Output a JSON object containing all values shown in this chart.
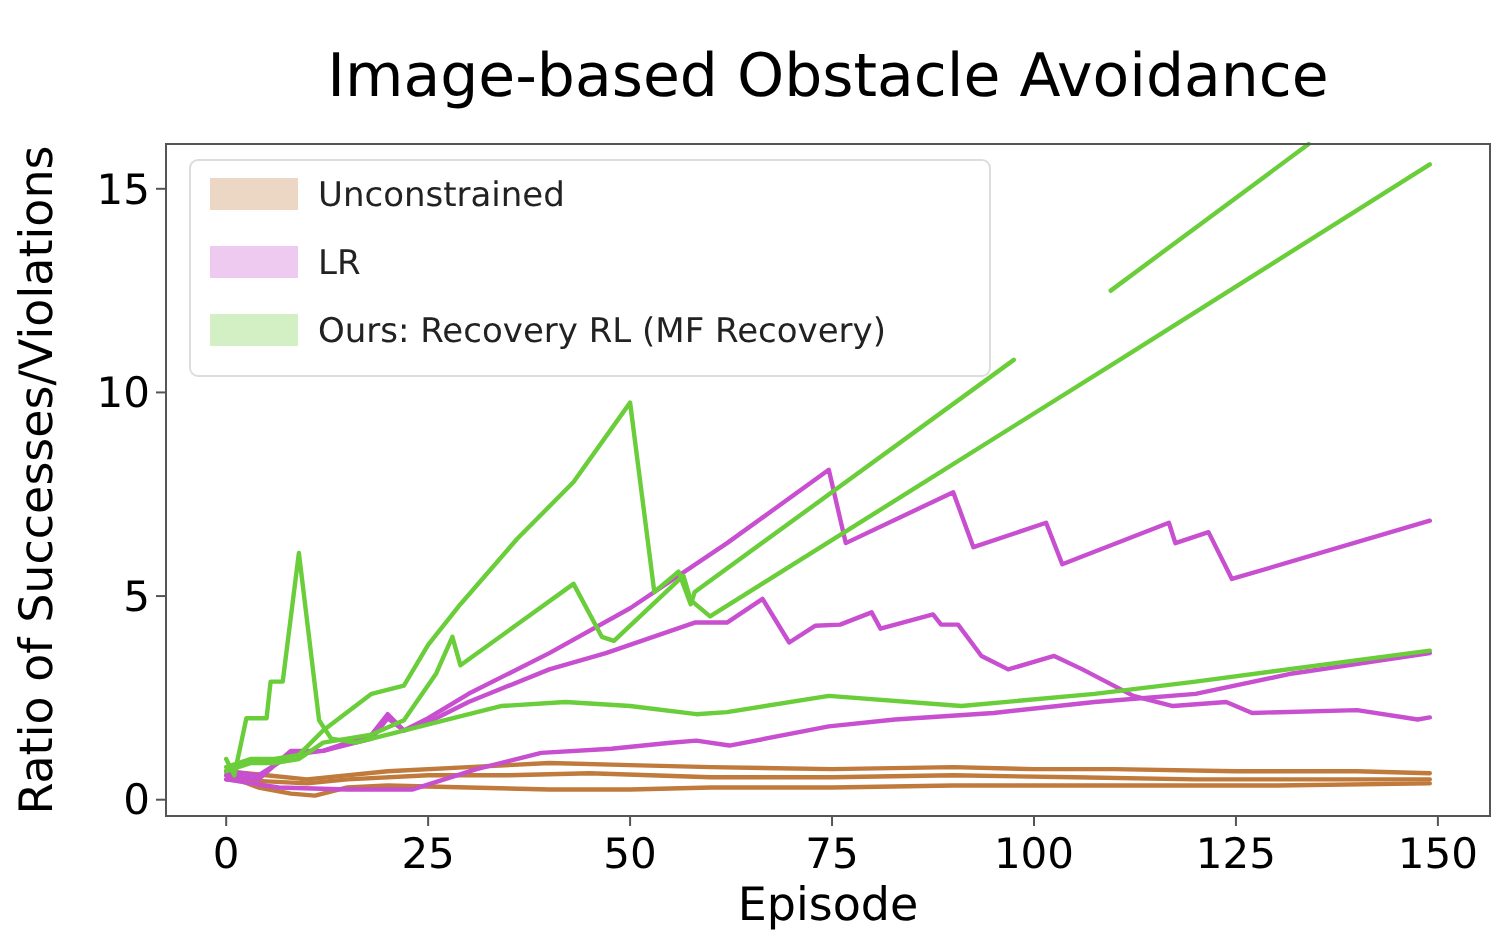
{
  "chart_data": {
    "type": "line",
    "title": "Image-based Obstacle Avoidance",
    "xlabel": "Episode",
    "ylabel": "Ratio of Successes/Violations",
    "xlim": [
      -7.45,
      156.45
    ],
    "ylim": [
      -0.4,
      16.1
    ],
    "xticks": [
      0,
      25,
      50,
      75,
      100,
      125,
      150
    ],
    "yticks": [
      0,
      5,
      10,
      15
    ],
    "grid": false,
    "legend": "top left",
    "line_style": "solid",
    "series": [
      {
        "name": "Unconstrained",
        "color": "#c07a3c",
        "x": [
          0,
          5,
          10,
          20,
          30,
          40,
          50,
          60,
          75,
          90,
          100,
          110,
          125,
          140,
          149
        ],
        "values": [
          0.7,
          0.6,
          0.5,
          0.7,
          0.8,
          0.9,
          0.85,
          0.8,
          0.75,
          0.8,
          0.75,
          0.75,
          0.7,
          0.7,
          0.65
        ]
      },
      {
        "color": "#c07a3c",
        "x": [
          0,
          5,
          10,
          15,
          25,
          35,
          45,
          60,
          75,
          90,
          105,
          120,
          135,
          149
        ],
        "values": [
          0.5,
          0.45,
          0.4,
          0.5,
          0.6,
          0.6,
          0.65,
          0.55,
          0.55,
          0.6,
          0.55,
          0.5,
          0.5,
          0.5
        ]
      },
      {
        "color": "#c07a3c",
        "x": [
          0,
          4,
          8,
          11,
          15,
          20,
          30,
          40,
          50,
          60,
          75,
          90,
          110,
          130,
          149
        ],
        "values": [
          0.6,
          0.3,
          0.15,
          0.1,
          0.3,
          0.35,
          0.3,
          0.25,
          0.25,
          0.3,
          0.3,
          0.35,
          0.35,
          0.35,
          0.4
        ]
      },
      {
        "name": "LR",
        "color": "#c74fd0",
        "x": [
          0,
          4,
          8,
          12,
          18,
          20,
          22,
          25,
          30,
          40,
          50,
          62,
          74.6,
          76.7,
          90,
          92.5,
          101.5,
          103.5,
          116.7,
          117.5,
          121.6,
          124.5,
          149
        ],
        "values": [
          0.6,
          0.5,
          1.2,
          1.2,
          1.6,
          2.1,
          1.7,
          2.0,
          2.6,
          3.6,
          4.7,
          6.3,
          8.1,
          6.3,
          7.55,
          6.2,
          6.8,
          5.78,
          6.8,
          6.3,
          6.57,
          5.42,
          6.85
        ]
      },
      {
        "color": "#c74fd0",
        "x": [
          0,
          4,
          8,
          12,
          18,
          20,
          22,
          25,
          30,
          40,
          47,
          58,
          62,
          66.4,
          69.7,
          72.9,
          76,
          79.9,
          81,
          87.5,
          88.5,
          90.6,
          93.5,
          96.8,
          102.5,
          106,
          112.3,
          117.2,
          123.8,
          127,
          140,
          147.5,
          149
        ],
        "values": [
          0.7,
          0.6,
          1.1,
          1.2,
          1.5,
          2.0,
          1.7,
          1.9,
          2.4,
          3.2,
          3.6,
          4.35,
          4.35,
          4.93,
          3.86,
          4.27,
          4.3,
          4.6,
          4.2,
          4.55,
          4.3,
          4.3,
          3.53,
          3.2,
          3.53,
          3.2,
          2.55,
          2.3,
          2.4,
          2.13,
          2.2,
          1.97,
          2.02
        ]
      },
      {
        "color": "#c74fd0",
        "x": [
          0,
          6.5,
          15,
          23,
          31,
          39,
          47.7,
          55,
          58.2,
          62.3,
          74.6,
          82.8,
          95,
          107.5,
          120,
          132,
          149
        ],
        "values": [
          0.5,
          0.3,
          0.25,
          0.25,
          0.75,
          1.15,
          1.25,
          1.4,
          1.45,
          1.33,
          1.8,
          1.97,
          2.13,
          2.4,
          2.6,
          3.1,
          3.6
        ]
      },
      {
        "name": "Ours: Recovery RL (MF Recovery)",
        "color": "#6acd3a",
        "x": [
          0,
          1,
          2.5,
          5,
          5.5,
          7,
          9,
          11.5,
          13,
          16,
          20,
          26,
          34,
          42,
          50,
          58.2,
          62,
          74.6,
          91,
          107.5,
          120,
          149
        ],
        "values": [
          1.0,
          0.6,
          2.0,
          2.0,
          2.9,
          2.9,
          6.06,
          1.95,
          1.5,
          1.4,
          1.6,
          1.9,
          2.3,
          2.4,
          2.3,
          2.1,
          2.15,
          2.55,
          2.3,
          2.6,
          2.9,
          3.66
        ]
      },
      {
        "color": "#6acd3a",
        "x": [
          0,
          3,
          6,
          9,
          12,
          18,
          22,
          25,
          29,
          36,
          43,
          50,
          53,
          56,
          57.5,
          58,
          97.5,
          103,
          109.5,
          134
        ],
        "values": [
          0.8,
          1.0,
          1.0,
          1.1,
          1.7,
          2.6,
          2.8,
          3.8,
          4.8,
          6.4,
          7.8,
          9.75,
          5.1,
          5.6,
          4.8,
          5.1,
          10.8,
          null,
          12.5,
          16.1
        ]
      },
      {
        "color": "#6acd3a",
        "x": [
          0,
          3,
          6,
          9,
          12,
          18,
          22,
          26,
          28,
          29,
          36,
          43,
          46.5,
          48,
          56.6,
          57.5,
          59.9,
          110.6,
          149
        ],
        "values": [
          0.7,
          0.9,
          0.9,
          1.0,
          1.4,
          1.6,
          1.95,
          3.1,
          4.0,
          3.3,
          4.3,
          5.3,
          4.0,
          3.9,
          5.5,
          4.9,
          4.5,
          10.8,
          15.6
        ]
      }
    ]
  }
}
